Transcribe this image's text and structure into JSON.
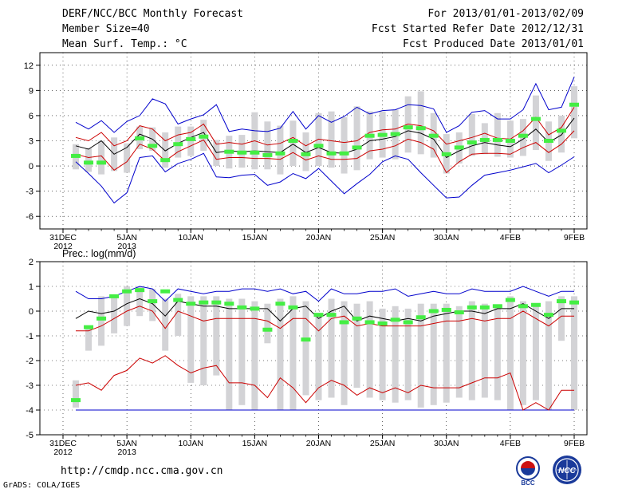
{
  "header": {
    "title": "DERF/NCC/BCC Monthly Forecast",
    "member_size": "Member Size=40",
    "variable": "Mean Surf. Temp.: °C",
    "for_period": "For 2013/01/01-2013/02/09",
    "fcst_started": "Fcst Started Refer Date 2012/12/31",
    "fcst_produced": "Fcst Produced Date 2013/01/01"
  },
  "footer": {
    "url": "http://cmdp.ncc.cma.gov.cn",
    "credit": "GrADS: COLA/IGES",
    "logo_left_text": "BCC",
    "logo_right_text": "NCC"
  },
  "colors": {
    "envelope": "#0000cc",
    "spread": "#cc0000",
    "mean": "#000000",
    "box": "#d3d3d6",
    "observed": "#44ee44",
    "zero_line": "#0000cc"
  },
  "chart_data": [
    {
      "type": "box-and-line",
      "title": "Mean Surf. Temp.: °C",
      "ylim": [
        -7.5,
        13.5
      ],
      "yticks": [
        12,
        9,
        6,
        3,
        0,
        -3,
        -6
      ],
      "x_day_range": [
        0,
        40
      ],
      "xticks": [
        {
          "day": 0,
          "label": "31DEC",
          "sub": "2012"
        },
        {
          "day": 5,
          "label": "5JAN",
          "sub": "2013"
        },
        {
          "day": 10,
          "label": "10JAN",
          "sub": ""
        },
        {
          "day": 15,
          "label": "15JAN",
          "sub": ""
        },
        {
          "day": 20,
          "label": "20JAN",
          "sub": ""
        },
        {
          "day": 25,
          "label": "25JAN",
          "sub": ""
        },
        {
          "day": 30,
          "label": "30JAN",
          "sub": ""
        },
        {
          "day": 35,
          "label": "4FEB",
          "sub": ""
        },
        {
          "day": 40,
          "label": "9FEB",
          "sub": ""
        }
      ],
      "days": [
        1,
        2,
        3,
        4,
        5,
        6,
        7,
        8,
        9,
        10,
        11,
        12,
        13,
        14,
        15,
        16,
        17,
        18,
        19,
        20,
        21,
        22,
        23,
        24,
        25,
        26,
        27,
        28,
        29,
        30,
        31,
        32,
        33,
        34,
        35,
        36,
        37,
        38,
        39,
        40
      ],
      "series": [
        {
          "name": "max",
          "values": [
            5.2,
            4.4,
            5.4,
            4.0,
            5.3,
            6.0,
            8.0,
            7.4,
            5.0,
            5.6,
            6.1,
            7.3,
            4.1,
            4.4,
            4.2,
            4.1,
            4.5,
            6.5,
            4.4,
            6.0,
            5.2,
            5.9,
            7.0,
            6.2,
            6.6,
            6.7,
            7.3,
            7.2,
            6.8,
            4.0,
            4.8,
            6.4,
            6.6,
            5.6,
            5.6,
            6.7,
            9.8,
            6.7,
            7.0,
            10.6
          ]
        },
        {
          "name": "p_upper",
          "values": [
            3.4,
            3.0,
            4.0,
            2.4,
            3.0,
            4.8,
            4.4,
            3.0,
            3.7,
            4.0,
            5.0,
            2.6,
            2.8,
            2.6,
            3.0,
            2.5,
            2.7,
            3.4,
            2.4,
            3.2,
            3.0,
            2.8,
            3.0,
            4.0,
            4.3,
            4.4,
            5.0,
            4.8,
            4.2,
            2.6,
            3.0,
            3.4,
            3.9,
            3.3,
            3.2,
            4.2,
            5.8,
            3.7,
            4.6,
            7.0
          ]
        },
        {
          "name": "mean",
          "values": [
            2.4,
            2.0,
            3.0,
            1.4,
            2.2,
            3.8,
            3.2,
            1.8,
            2.7,
            3.4,
            4.0,
            1.6,
            1.8,
            1.7,
            1.8,
            1.7,
            1.6,
            2.6,
            1.6,
            2.2,
            1.6,
            1.5,
            2.0,
            3.0,
            3.2,
            3.5,
            4.2,
            3.9,
            3.2,
            1.0,
            1.8,
            2.4,
            2.8,
            2.5,
            2.3,
            3.2,
            4.4,
            2.8,
            3.7,
            5.7
          ]
        },
        {
          "name": "p_lower",
          "values": [
            1.4,
            1.0,
            1.2,
            -0.5,
            0.5,
            2.6,
            2.0,
            0.6,
            1.7,
            2.4,
            3.1,
            0.8,
            1.0,
            1.0,
            0.9,
            0.9,
            0.8,
            1.6,
            0.7,
            1.2,
            0.8,
            0.8,
            0.9,
            1.8,
            2.0,
            2.4,
            3.2,
            2.8,
            2.0,
            -0.8,
            0.5,
            1.4,
            1.5,
            1.5,
            1.4,
            2.2,
            2.8,
            1.6,
            2.6,
            4.2
          ]
        },
        {
          "name": "min",
          "values": [
            0.5,
            -0.9,
            -2.4,
            -4.4,
            -3.2,
            1.0,
            1.2,
            -0.7,
            0.3,
            0.8,
            1.5,
            -1.3,
            -1.4,
            -1.1,
            -1.0,
            -2.3,
            -1.9,
            -0.9,
            -1.5,
            -0.3,
            -1.8,
            -3.3,
            -2.1,
            -1.0,
            0.5,
            1.2,
            0.8,
            -0.8,
            -2.3,
            -3.8,
            -3.7,
            -2.3,
            -1.1,
            -0.8,
            -0.5,
            -0.1,
            0.3,
            -0.8,
            0.1,
            1.1
          ]
        },
        {
          "name": "box_high",
          "values": [
            2.6,
            2.1,
            3.0,
            3.4,
            2.7,
            4.7,
            4.6,
            4.0,
            4.7,
            4.7,
            5.5,
            3.1,
            3.6,
            3.7,
            6.4,
            5.3,
            4.8,
            5.4,
            4.0,
            6.3,
            6.5,
            5.8,
            7.1,
            6.5,
            6.5,
            6.7,
            8.3,
            8.9,
            6.3,
            3.8,
            4.0,
            6.2,
            5.1,
            6.3,
            5.4,
            5.6,
            8.4,
            5.3,
            6.0,
            9.5
          ]
        },
        {
          "name": "box_low",
          "values": [
            -0.4,
            -0.7,
            -1.0,
            -0.6,
            -0.8,
            2.0,
            1.8,
            -0.2,
            1.0,
            1.2,
            1.8,
            0.0,
            -0.3,
            -0.2,
            -0.4,
            -0.4,
            -1.0,
            0.0,
            -0.6,
            0.0,
            -0.2,
            -0.9,
            -0.5,
            0.8,
            1.0,
            0.8,
            1.6,
            1.4,
            1.0,
            -0.9,
            0.3,
            1.2,
            1.4,
            1.1,
            1.0,
            1.2,
            1.9,
            0.6,
            1.6,
            3.3
          ]
        },
        {
          "name": "observed",
          "values": [
            1.2,
            0.4,
            0.4,
            null,
            null,
            3.3,
            2.4,
            0.7,
            2.6,
            3.2,
            3.5,
            null,
            1.7,
            1.6,
            1.6,
            1.3,
            1.5,
            3.0,
            1.4,
            2.4,
            1.5,
            1.5,
            2.2,
            3.6,
            3.7,
            3.8,
            4.6,
            4.5,
            3.6,
            1.4,
            2.2,
            2.8,
            3.1,
            3.1,
            3.0,
            3.6,
            5.6,
            3.0,
            4.2,
            7.3
          ]
        }
      ]
    },
    {
      "type": "box-and-line",
      "title": "Prec.: log(mm/d)",
      "ylim": [
        -5,
        2
      ],
      "yticks": [
        2,
        1,
        0,
        -1,
        -2,
        -3,
        -4,
        -5
      ],
      "x_day_range": [
        0,
        40
      ],
      "xticks": [
        {
          "day": 0,
          "label": "31DEC",
          "sub": "2012"
        },
        {
          "day": 5,
          "label": "5JAN",
          "sub": "2013"
        },
        {
          "day": 10,
          "label": "10JAN",
          "sub": ""
        },
        {
          "day": 15,
          "label": "15JAN",
          "sub": ""
        },
        {
          "day": 20,
          "label": "20JAN",
          "sub": ""
        },
        {
          "day": 25,
          "label": "25JAN",
          "sub": ""
        },
        {
          "day": 30,
          "label": "30JAN",
          "sub": ""
        },
        {
          "day": 35,
          "label": "4FEB",
          "sub": ""
        },
        {
          "day": 40,
          "label": "9FEB",
          "sub": ""
        }
      ],
      "days": [
        1,
        2,
        3,
        4,
        5,
        6,
        7,
        8,
        9,
        10,
        11,
        12,
        13,
        14,
        15,
        16,
        17,
        18,
        19,
        20,
        21,
        22,
        23,
        24,
        25,
        26,
        27,
        28,
        29,
        30,
        31,
        32,
        33,
        34,
        35,
        36,
        37,
        38,
        39,
        40
      ],
      "series": [
        {
          "name": "max",
          "values": [
            0.8,
            0.5,
            0.5,
            0.6,
            0.8,
            1.0,
            0.9,
            0.4,
            0.9,
            0.8,
            0.7,
            0.8,
            0.8,
            0.9,
            0.9,
            0.8,
            0.9,
            0.7,
            0.8,
            0.4,
            0.9,
            0.7,
            0.7,
            0.8,
            0.8,
            0.9,
            0.6,
            0.7,
            0.8,
            0.7,
            0.7,
            0.9,
            0.8,
            0.8,
            0.8,
            1.0,
            0.8,
            0.6,
            0.8,
            0.8
          ]
        },
        {
          "name": "mean",
          "values": [
            -0.3,
            0.0,
            -0.1,
            0.0,
            0.3,
            0.5,
            0.3,
            -0.2,
            0.4,
            0.3,
            0.2,
            0.2,
            0.1,
            0.1,
            0.1,
            0.1,
            -0.4,
            0.1,
            0.2,
            -0.3,
            0.0,
            0.2,
            -0.4,
            -0.2,
            -0.3,
            -0.4,
            -0.3,
            -0.4,
            -0.2,
            -0.1,
            0.0,
            0.0,
            -0.1,
            0.1,
            0.1,
            0.3,
            0.0,
            -0.3,
            0.1,
            0.1
          ]
        },
        {
          "name": "p_lower",
          "values": [
            -0.8,
            -0.8,
            -0.6,
            -0.3,
            0.0,
            0.2,
            0.0,
            -0.7,
            0.0,
            -0.2,
            -0.4,
            -0.3,
            -0.3,
            -0.3,
            -0.3,
            -0.4,
            -0.7,
            -0.3,
            -0.3,
            -0.8,
            -0.3,
            -0.2,
            -0.6,
            -0.5,
            -0.6,
            -0.6,
            -0.6,
            -0.6,
            -0.5,
            -0.4,
            -0.4,
            -0.3,
            -0.4,
            -0.3,
            -0.3,
            0.0,
            -0.3,
            -0.6,
            -0.2,
            -0.2
          ]
        },
        {
          "name": "min",
          "values": [
            -3.0,
            -2.9,
            -3.2,
            -2.6,
            -2.4,
            -1.9,
            -2.1,
            -1.8,
            -2.2,
            -2.5,
            -2.3,
            -2.2,
            -2.9,
            -2.9,
            -3.0,
            -3.5,
            -2.7,
            -3.1,
            -3.7,
            -3.1,
            -2.8,
            -3.0,
            -3.4,
            -3.1,
            -3.3,
            -3.1,
            -3.3,
            -3.0,
            -3.1,
            -3.1,
            -3.1,
            -2.9,
            -2.7,
            -2.7,
            -2.5,
            -4.0,
            -3.7,
            -4.0,
            -3.2,
            -3.2
          ]
        },
        {
          "name": "floor",
          "values": [
            -4,
            -4,
            -4,
            -4,
            -4,
            -4,
            -4,
            -4,
            -4,
            -4,
            -4,
            -4,
            -4,
            -4,
            -4,
            -4,
            -4,
            -4,
            -4,
            -4,
            -4,
            -4,
            -4,
            -4,
            -4,
            -4,
            -4,
            -4,
            -4,
            -4,
            -4,
            -4,
            -4,
            -4,
            -4,
            -4,
            -4,
            -4,
            -4,
            -4
          ]
        },
        {
          "name": "box_high",
          "values": [
            -2.8,
            -0.6,
            0.6,
            0.6,
            1.0,
            1.0,
            0.9,
            0.5,
            0.7,
            0.6,
            0.6,
            0.6,
            0.5,
            0.5,
            0.4,
            0.3,
            0.5,
            0.6,
            0.4,
            -0.1,
            0.5,
            0.4,
            0.3,
            0.4,
            0.1,
            0.2,
            0.1,
            0.3,
            0.3,
            0.3,
            0.2,
            0.4,
            0.3,
            0.2,
            0.6,
            0.4,
            0.3,
            0.4,
            0.6,
            0.6
          ]
        },
        {
          "name": "box_low",
          "values": [
            -3.9,
            -1.6,
            -1.4,
            -0.9,
            -0.6,
            -0.2,
            -0.4,
            -1.6,
            -1.0,
            -2.9,
            -3.0,
            -2.6,
            -4.0,
            -3.8,
            -4.0,
            -1.3,
            -4.0,
            -4.0,
            -3.4,
            -3.6,
            -3.5,
            -3.8,
            -3.1,
            -3.5,
            -3.6,
            -3.7,
            -3.6,
            -3.9,
            -3.8,
            -3.7,
            -3.5,
            -3.6,
            -3.5,
            -3.6,
            -4.0,
            -3.8,
            -3.6,
            -4.0,
            -1.2,
            -4.0
          ]
        },
        {
          "name": "observed",
          "values": [
            -3.6,
            -0.65,
            -0.3,
            0.6,
            0.8,
            0.85,
            0.4,
            0.8,
            0.45,
            0.3,
            0.35,
            0.35,
            0.3,
            0.15,
            0.1,
            -0.75,
            0.3,
            0.15,
            -1.15,
            -0.15,
            -0.15,
            -0.45,
            -0.3,
            -0.45,
            -0.5,
            -0.35,
            -0.45,
            -0.25,
            0.0,
            0.05,
            -0.05,
            0.15,
            0.15,
            0.2,
            0.45,
            0.2,
            0.25,
            -0.15,
            0.4,
            0.35
          ]
        }
      ]
    }
  ]
}
